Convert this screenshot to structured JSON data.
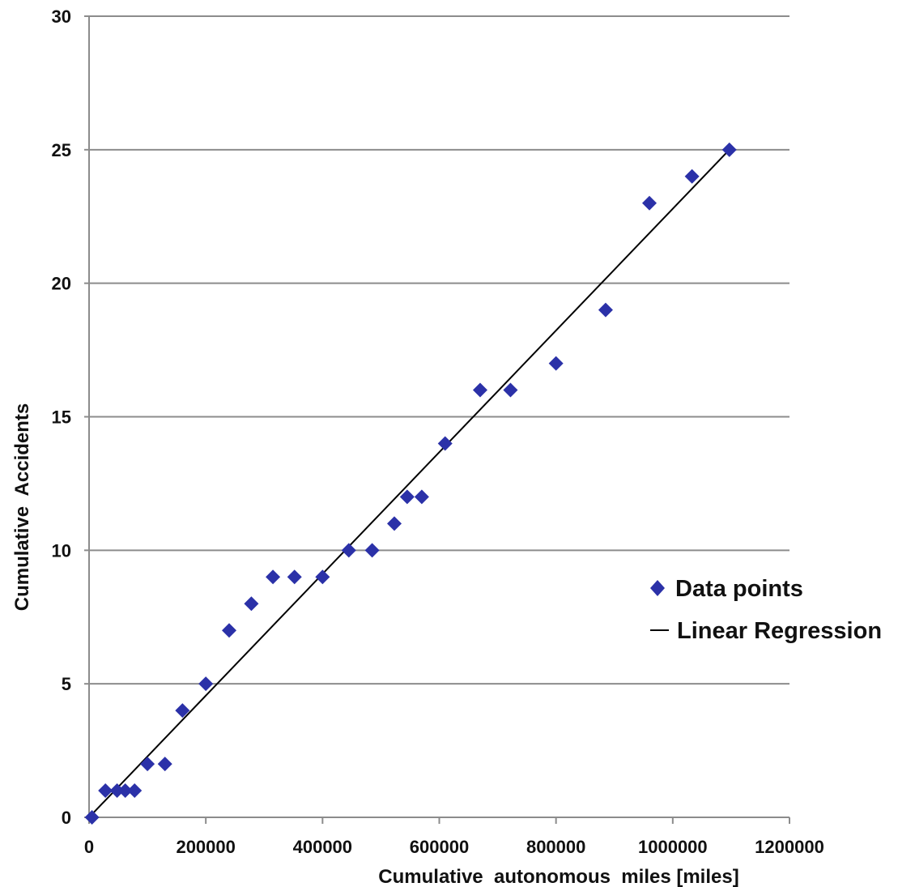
{
  "chart_data": {
    "type": "scatter",
    "title": "",
    "xlabel": "Cumulative  autonomous  miles [miles]",
    "ylabel": "Cumulative  Accidents",
    "xlim": [
      0,
      1200000
    ],
    "ylim": [
      0,
      30
    ],
    "xticks": [
      0,
      200000,
      400000,
      600000,
      800000,
      1000000,
      1200000
    ],
    "yticks": [
      0,
      5,
      10,
      15,
      20,
      25,
      30
    ],
    "xtick_labels": [
      "0",
      "200000",
      "400000",
      "600000",
      "800000",
      "1000000",
      "1200000"
    ],
    "ytick_labels": [
      "0",
      "5",
      "10",
      "15",
      "20",
      "25",
      "30"
    ],
    "grid": "horizontal",
    "legend_position": "right",
    "series": [
      {
        "name": "Data points",
        "kind": "scatter",
        "marker": "diamond",
        "color": "#2b31a8",
        "points": [
          [
            5000,
            0
          ],
          [
            28000,
            1
          ],
          [
            48000,
            1
          ],
          [
            62000,
            1
          ],
          [
            78000,
            1
          ],
          [
            100000,
            2
          ],
          [
            130000,
            2
          ],
          [
            160000,
            4
          ],
          [
            200000,
            5
          ],
          [
            240000,
            7
          ],
          [
            278000,
            8
          ],
          [
            315000,
            9
          ],
          [
            352000,
            9
          ],
          [
            400000,
            9
          ],
          [
            445000,
            10
          ],
          [
            485000,
            10
          ],
          [
            523000,
            11
          ],
          [
            545000,
            12
          ],
          [
            570000,
            12
          ],
          [
            610000,
            14
          ],
          [
            670000,
            16
          ],
          [
            722000,
            16
          ],
          [
            800000,
            17
          ],
          [
            885000,
            19
          ],
          [
            960000,
            23
          ],
          [
            1033000,
            24
          ],
          [
            1097000,
            25
          ]
        ]
      },
      {
        "name": "Linear Regression",
        "kind": "line",
        "color": "#000000",
        "points": [
          [
            0,
            0
          ],
          [
            1097000,
            25
          ]
        ]
      }
    ]
  }
}
